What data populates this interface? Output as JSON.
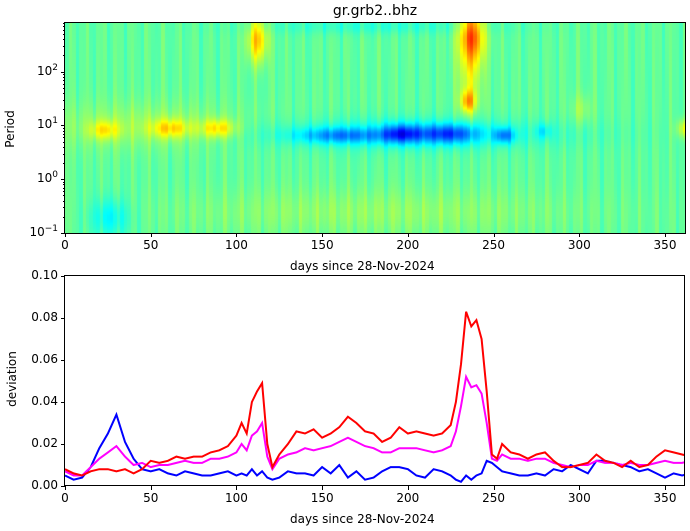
{
  "chart_data": [
    {
      "type": "heatmap",
      "title": "gr.grb2..bhz",
      "xlabel": "days since 28-Nov-2024",
      "ylabel": "Period",
      "xlim": [
        0,
        365
      ],
      "ylim": [
        0.1,
        800
      ],
      "yscale": "log",
      "xticks": [
        "0",
        "50",
        "100",
        "150",
        "200",
        "250",
        "300",
        "350"
      ],
      "yticks": [
        "10⁻¹",
        "10⁰",
        "10¹",
        "10²"
      ],
      "colormap": "jet",
      "features": [
        {
          "desc": "yellow/red high at long periods",
          "x": [
            105,
            115
          ],
          "period": [
            200,
            800
          ],
          "level": "high"
        },
        {
          "desc": "orange/red high at long periods",
          "x": [
            228,
            245
          ],
          "period": [
            20,
            800
          ],
          "level": "very high"
        },
        {
          "desc": "yellow band near 10 s",
          "x": [
            15,
            95
          ],
          "period": [
            6,
            14
          ],
          "level": "moderate high"
        },
        {
          "desc": "blue low band near 6-8 s",
          "x": [
            140,
            260
          ],
          "period": [
            5,
            10
          ],
          "level": "low"
        },
        {
          "desc": "cyan low at short periods",
          "x": [
            15,
            35
          ],
          "period": [
            0.1,
            0.4
          ],
          "level": "slightly low"
        },
        {
          "desc": "yellow spot near 10 s",
          "x": [
            355,
            365
          ],
          "period": [
            6,
            14
          ],
          "level": "moderate high"
        }
      ]
    },
    {
      "type": "line",
      "xlabel": "days since 28-Nov-2024",
      "ylabel": "deviation",
      "xlim": [
        0,
        365
      ],
      "ylim": [
        0,
        0.1
      ],
      "xticks": [
        "0",
        "50",
        "100",
        "150",
        "200",
        "250",
        "300",
        "350"
      ],
      "yticks": [
        "0.00",
        "0.02",
        "0.04",
        "0.06",
        "0.08",
        "0.10"
      ],
      "x": [
        0,
        5,
        10,
        15,
        20,
        25,
        30,
        35,
        40,
        45,
        50,
        55,
        60,
        65,
        70,
        75,
        80,
        85,
        90,
        95,
        100,
        103,
        106,
        109,
        112,
        115,
        118,
        121,
        125,
        130,
        135,
        140,
        145,
        150,
        155,
        160,
        165,
        170,
        175,
        180,
        185,
        190,
        195,
        200,
        205,
        210,
        215,
        220,
        225,
        228,
        231,
        234,
        237,
        240,
        243,
        246,
        249,
        252,
        255,
        260,
        265,
        270,
        275,
        280,
        285,
        290,
        295,
        300,
        305,
        310,
        315,
        320,
        325,
        330,
        335,
        340,
        345,
        350,
        355,
        360,
        365
      ],
      "series": [
        {
          "name": "red",
          "color": "#ff0000",
          "values": [
            0.008,
            0.006,
            0.005,
            0.007,
            0.008,
            0.008,
            0.007,
            0.008,
            0.006,
            0.008,
            0.012,
            0.011,
            0.012,
            0.014,
            0.013,
            0.014,
            0.014,
            0.016,
            0.017,
            0.019,
            0.024,
            0.03,
            0.025,
            0.04,
            0.045,
            0.049,
            0.02,
            0.009,
            0.015,
            0.02,
            0.026,
            0.025,
            0.027,
            0.023,
            0.025,
            0.028,
            0.033,
            0.03,
            0.026,
            0.025,
            0.021,
            0.023,
            0.028,
            0.025,
            0.026,
            0.025,
            0.024,
            0.025,
            0.029,
            0.04,
            0.058,
            0.083,
            0.076,
            0.079,
            0.07,
            0.045,
            0.015,
            0.013,
            0.02,
            0.016,
            0.015,
            0.013,
            0.015,
            0.016,
            0.012,
            0.009,
            0.009,
            0.01,
            0.011,
            0.015,
            0.012,
            0.011,
            0.009,
            0.012,
            0.009,
            0.01,
            0.014,
            0.017,
            0.016,
            0.015,
            0.014
          ]
        },
        {
          "name": "magenta",
          "color": "#ff00ff",
          "values": [
            0.007,
            0.005,
            0.005,
            0.009,
            0.013,
            0.016,
            0.019,
            0.014,
            0.01,
            0.011,
            0.009,
            0.01,
            0.01,
            0.011,
            0.012,
            0.011,
            0.011,
            0.013,
            0.013,
            0.014,
            0.016,
            0.02,
            0.017,
            0.024,
            0.026,
            0.03,
            0.014,
            0.008,
            0.013,
            0.015,
            0.016,
            0.018,
            0.017,
            0.018,
            0.019,
            0.021,
            0.023,
            0.021,
            0.019,
            0.018,
            0.016,
            0.016,
            0.018,
            0.018,
            0.018,
            0.017,
            0.016,
            0.017,
            0.019,
            0.026,
            0.038,
            0.052,
            0.047,
            0.048,
            0.044,
            0.03,
            0.013,
            0.012,
            0.015,
            0.013,
            0.013,
            0.012,
            0.013,
            0.013,
            0.011,
            0.01,
            0.009,
            0.01,
            0.01,
            0.012,
            0.011,
            0.011,
            0.01,
            0.011,
            0.01,
            0.01,
            0.011,
            0.012,
            0.011,
            0.011,
            0.012
          ]
        },
        {
          "name": "blue",
          "color": "#0000ff",
          "values": [
            0.005,
            0.003,
            0.004,
            0.009,
            0.018,
            0.025,
            0.034,
            0.021,
            0.013,
            0.008,
            0.007,
            0.008,
            0.006,
            0.005,
            0.007,
            0.006,
            0.005,
            0.005,
            0.006,
            0.007,
            0.005,
            0.006,
            0.005,
            0.008,
            0.005,
            0.007,
            0.004,
            0.003,
            0.004,
            0.007,
            0.006,
            0.006,
            0.005,
            0.009,
            0.006,
            0.01,
            0.004,
            0.007,
            0.003,
            0.004,
            0.007,
            0.009,
            0.009,
            0.008,
            0.005,
            0.004,
            0.008,
            0.007,
            0.005,
            0.003,
            0.002,
            0.005,
            0.003,
            0.005,
            0.006,
            0.012,
            0.011,
            0.009,
            0.007,
            0.006,
            0.005,
            0.005,
            0.006,
            0.005,
            0.008,
            0.007,
            0.01,
            0.008,
            0.006,
            0.012,
            0.012,
            0.011,
            0.01,
            0.009,
            0.007,
            0.008,
            0.006,
            0.004,
            0.006,
            0.005,
            0.006
          ]
        }
      ]
    }
  ],
  "top": {
    "title": "gr.grb2..bhz",
    "ylabel": "Period",
    "xlabel": "days since 28-Nov-2024",
    "xticks": [
      "0",
      "50",
      "100",
      "150",
      "200",
      "250",
      "300",
      "350"
    ],
    "ytick_base": "10",
    "yticks_exp": [
      "−1",
      "0",
      "1",
      "2"
    ]
  },
  "bottom": {
    "ylabel": "deviation",
    "xlabel": "days since 28-Nov-2024",
    "xticks": [
      "0",
      "50",
      "100",
      "150",
      "200",
      "250",
      "300",
      "350"
    ],
    "yticks": [
      "0.00",
      "0.02",
      "0.04",
      "0.06",
      "0.08",
      "0.10"
    ]
  }
}
